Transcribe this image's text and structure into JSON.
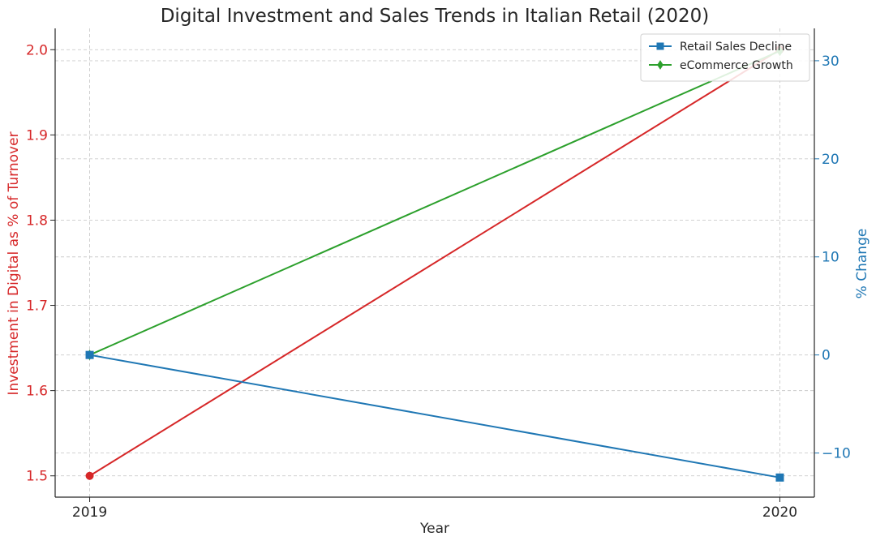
{
  "chart_data": {
    "type": "line",
    "title": "Digital Investment and Sales Trends in Italian Retail (2020)",
    "xlabel": "Year",
    "ylabel_left": "Investment in Digital as % of Turnover",
    "ylabel_right": "% Change",
    "categories": [
      "2019",
      "2020"
    ],
    "x": [
      2019,
      2020
    ],
    "xlim": [
      2018.95,
      2020.05
    ],
    "ylim_left": [
      1.475,
      2.025
    ],
    "ylim_right": [
      -14.5,
      33.3
    ],
    "yticks_left": [
      1.5,
      1.6,
      1.7,
      1.8,
      1.9,
      2.0
    ],
    "yticks_left_labels": [
      "1.5",
      "1.6",
      "1.7",
      "1.8",
      "1.9",
      "2.0"
    ],
    "yticks_right": [
      -10,
      0,
      10,
      20,
      30
    ],
    "yticks_right_labels": [
      "−10",
      "0",
      "10",
      "20",
      "30"
    ],
    "grid": true,
    "legend_position": "top-right",
    "colors": {
      "investment": "#d62728",
      "retail": "#1f77b4",
      "ecommerce": "#2ca02c",
      "left_axis": "#d62728",
      "right_axis": "#1f77b4"
    },
    "series": [
      {
        "key": "investment",
        "axis": "left",
        "marker": "circle",
        "values": [
          1.5,
          2.0
        ]
      },
      {
        "key": "retail",
        "name": "Retail Sales Decline",
        "axis": "right",
        "marker": "square",
        "values": [
          0,
          -12.5
        ]
      },
      {
        "key": "ecommerce",
        "name": "eCommerce Growth",
        "axis": "right",
        "marker": "diamond",
        "values": [
          0,
          31
        ]
      }
    ]
  }
}
